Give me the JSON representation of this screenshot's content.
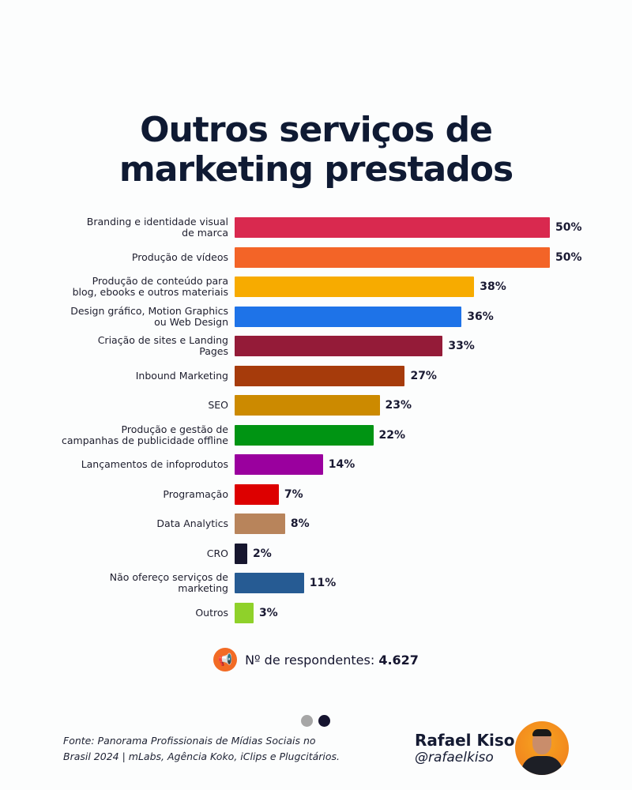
{
  "title_line1": "Outros serviços de",
  "title_line2": "marketing prestados",
  "chart_data": {
    "type": "bar",
    "orientation": "horizontal",
    "title": "Outros serviços de marketing prestados",
    "categories": [
      "Branding e identidade visual de marca",
      "Produção de vídeos",
      "Produção de conteúdo para blog, ebooks e outros materiais",
      "Design gráfico, Motion Graphics ou Web Design",
      "Criação de sites e Landing Pages",
      "Inbound Marketing",
      "SEO",
      "Produção e gestão de campanhas de publicidade offline",
      "Lançamentos de infoprodutos",
      "Programação",
      "Data Analytics",
      "CRO",
      "Não ofereço serviços de marketing",
      "Outros"
    ],
    "label_lines": [
      [
        "Branding e identidade visual",
        "de marca"
      ],
      [
        "Produção de vídeos"
      ],
      [
        "Produção de conteúdo para",
        "blog, ebooks e outros materiais"
      ],
      [
        "Design gráfico, Motion Graphics",
        "ou Web Design"
      ],
      [
        "Criação de sites e Landing",
        "Pages"
      ],
      [
        "Inbound Marketing"
      ],
      [
        "SEO"
      ],
      [
        "Produção e gestão de",
        "campanhas de publicidade offline"
      ],
      [
        "Lançamentos de infoprodutos"
      ],
      [
        "Programação"
      ],
      [
        "Data Analytics"
      ],
      [
        "CRO"
      ],
      [
        "Não ofereço serviços de",
        "marketing"
      ],
      [
        "Outros"
      ]
    ],
    "values": [
      50,
      50,
      38,
      36,
      33,
      27,
      23,
      22,
      14,
      7,
      8,
      2,
      11,
      3
    ],
    "value_labels": [
      "50%",
      "50%",
      "38%",
      "36%",
      "33%",
      "27%",
      "23%",
      "22%",
      "14%",
      "7%",
      "8%",
      "2%",
      "11%",
      "3%"
    ],
    "colors": [
      "#d9294f",
      "#f36427",
      "#f7ab00",
      "#1e73e8",
      "#941b38",
      "#a63b0b",
      "#cc8a00",
      "#009413",
      "#9a009e",
      "#dd0000",
      "#b8845b",
      "#16162e",
      "#265b93",
      "#8fd12a"
    ],
    "unit": "%",
    "grid": false,
    "legend": "none"
  },
  "respondents": {
    "icon": "megaphone-icon",
    "label": "Nº de respondentes:",
    "value": "4.627",
    "icon_color": "#f26b25"
  },
  "pagination": {
    "total": 2,
    "active": 2
  },
  "source_line1": "Fonte: Panorama Profissionais de Mídias Sociais no",
  "source_line2": "Brasil 2024 | mLabs, Agência Koko, iClips e Plugcitários.",
  "author": {
    "name": "Rafael Kiso",
    "handle": "@rafaelkiso"
  }
}
